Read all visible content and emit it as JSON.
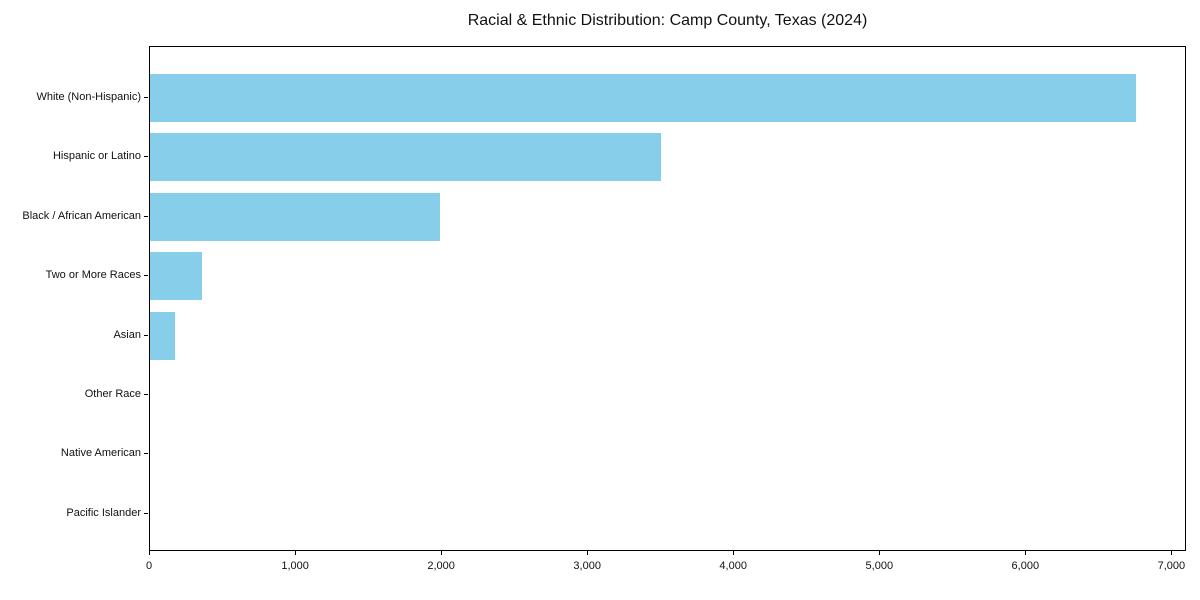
{
  "title": "Racial & Ethnic Distribution: Camp County, Texas (2024)",
  "colors": {
    "bar": "#87CEEB",
    "axis": "#000000",
    "text": "#111111",
    "background": "#ffffff"
  },
  "chart_data": {
    "type": "bar",
    "orientation": "horizontal",
    "title": "Racial & Ethnic Distribution: Camp County, Texas (2024)",
    "categories": [
      "White (Non-Hispanic)",
      "Hispanic or Latino",
      "Black / African American",
      "Two or More Races",
      "Asian",
      "Other Race",
      "Native American",
      "Pacific Islander"
    ],
    "values": [
      6750,
      3500,
      1985,
      355,
      170,
      0,
      0,
      0
    ],
    "xlabel": "",
    "ylabel": "",
    "xlim": [
      0,
      7100
    ],
    "x_ticks": [
      0,
      1000,
      2000,
      3000,
      4000,
      5000,
      6000,
      7000
    ],
    "x_tick_labels": [
      "0",
      "1,000",
      "2,000",
      "3,000",
      "4,000",
      "5,000",
      "6,000",
      "7,000"
    ],
    "grid": false,
    "legend": null,
    "bar_color": "#87CEEB"
  }
}
